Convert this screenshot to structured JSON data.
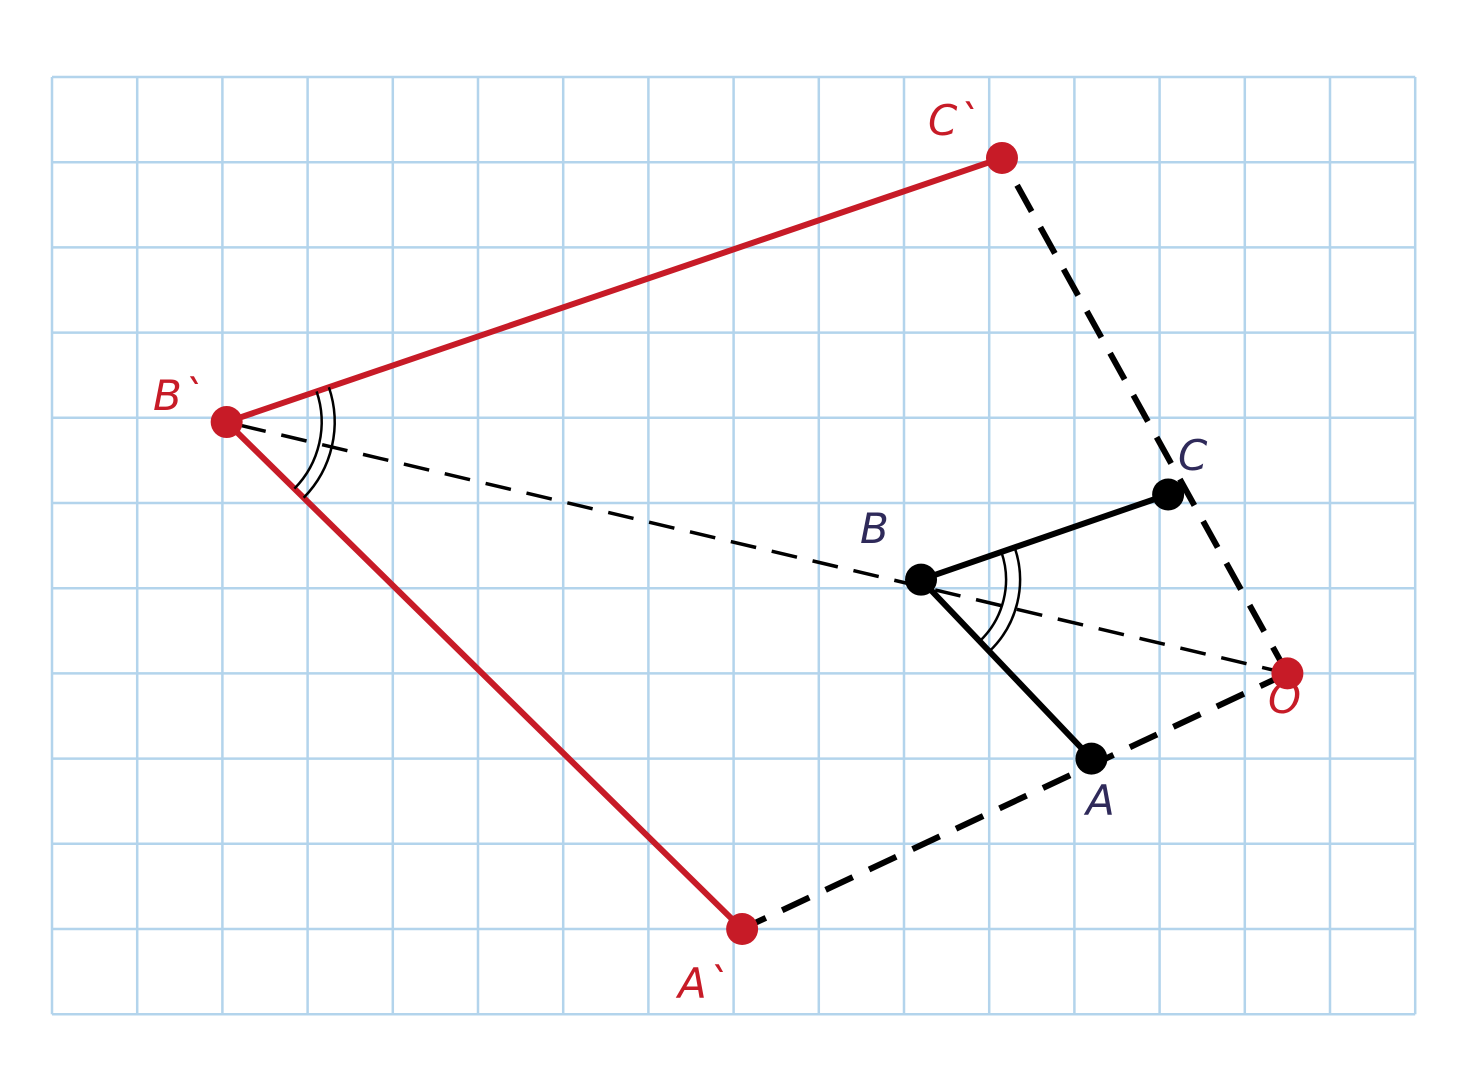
{
  "colors": {
    "grid": "#b3d4ec",
    "image": "#c71b27",
    "original": "#000000",
    "original_label": "#2f2a5a",
    "background": "#ffffff"
  },
  "grid": {
    "cols": 16,
    "rows": 11
  },
  "points": {
    "O": {
      "label": "O",
      "x": 14.5,
      "y": 7.0
    },
    "A": {
      "label": "A",
      "x": 12.2,
      "y": 8.0
    },
    "B": {
      "label": "B",
      "x": 10.2,
      "y": 5.9
    },
    "C": {
      "label": "C",
      "x": 13.1,
      "y": 4.9
    },
    "A2": {
      "label": "A`",
      "x": 8.1,
      "y": 10.0
    },
    "B2": {
      "label": "B`",
      "x": 2.05,
      "y": 4.05
    },
    "C2": {
      "label": "C`",
      "x": 11.15,
      "y": 0.95
    }
  }
}
